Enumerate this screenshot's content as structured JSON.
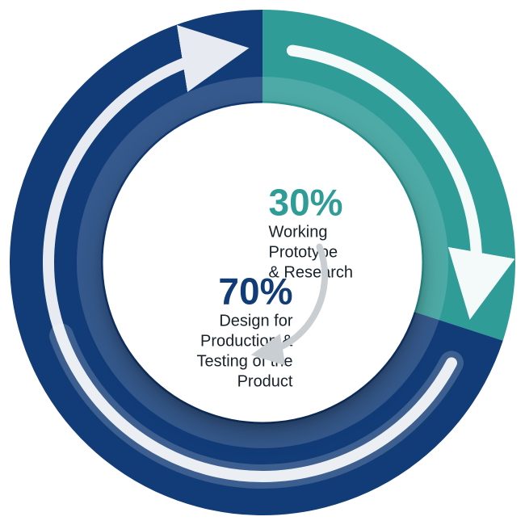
{
  "chart": {
    "type": "pie",
    "background_color": "#ffffff",
    "inner_circle_color": "#ffffff",
    "inner_shadow": "0 14px 28px rgba(0,0,0,0.28)",
    "segments": [
      {
        "id": "prototype",
        "value": 30,
        "percent_label": "30%",
        "label_lines": [
          "Working",
          "Prototype",
          "& Research"
        ],
        "label": "Working\nPrototype\n& Research",
        "start_angle_deg": 0,
        "end_angle_deg": 108,
        "color": "#2f9c97",
        "percent_color": "#2f9c97",
        "label_color": "#17222b",
        "percent_fontsize": 46,
        "label_fontsize": 20
      },
      {
        "id": "production",
        "value": 70,
        "percent_label": "70%",
        "label_lines": [
          "Design for",
          "Production &",
          "Testing of the",
          "Product"
        ],
        "label": "Design for\nProduction &\nTesting of the\nProduct",
        "start_angle_deg": 108,
        "end_angle_deg": 360,
        "color": "#123c78",
        "percent_color": "#123c78",
        "label_color": "#17222b",
        "percent_fontsize": 46,
        "label_fontsize": 20
      }
    ],
    "outer_radius": 313,
    "arrow_ring_mid_radius": 265,
    "inner_circle_radius": 198,
    "arrow_color": "#ffffff",
    "arrow_stroke_width": 14,
    "arrowhead_size": 38,
    "inner_curved_arrow_color": "#c9ced2",
    "label_font_family": "Helvetica Neue, Arial, sans-serif"
  }
}
